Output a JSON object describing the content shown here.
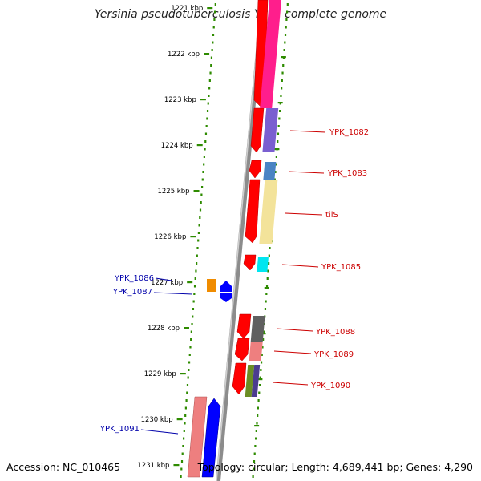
{
  "title": "Yersinia pseudotuberculosis YPIII, complete genome",
  "accession": "Accession: NC_010465",
  "summary": "Topology: circular; Length: 4,689,441 bp; Genes: 4,290",
  "colors": {
    "backbone": "#8c8c8c",
    "tick": "#2e8b00",
    "label_right": "#cc0000",
    "label_left": "#0000aa",
    "cds": "#ff0000"
  },
  "scale_labels": [
    "1221 kbp",
    "1222 kbp",
    "1223 kbp",
    "1224 kbp",
    "1225 kbp",
    "1226 kbp",
    "1227 kbp",
    "1228 kbp",
    "1229 kbp",
    "1230 kbp",
    "1231 kbp"
  ],
  "gene_labels": [
    {
      "text": "YPK_1082",
      "side": "right"
    },
    {
      "text": "YPK_1083",
      "side": "right"
    },
    {
      "text": "tilS",
      "side": "right"
    },
    {
      "text": "YPK_1085",
      "side": "right"
    },
    {
      "text": "YPK_1086",
      "side": "left"
    },
    {
      "text": "YPK_1087",
      "side": "left"
    },
    {
      "text": "YPK_1088",
      "side": "right"
    },
    {
      "text": "YPK_1089",
      "side": "right"
    },
    {
      "text": "YPK_1090",
      "side": "right"
    },
    {
      "text": "YPK_1091",
      "side": "left"
    }
  ]
}
